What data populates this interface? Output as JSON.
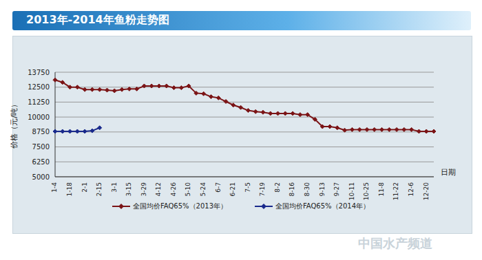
{
  "chart_data": {
    "type": "line",
    "title": "2013年-2014年鱼粉走势图",
    "y_label": "价格（元/吨）",
    "x_label": "日期",
    "source": "中国水产频道",
    "categories": [
      "1-4",
      null,
      "1-18",
      null,
      "2-1",
      null,
      "2-15",
      null,
      "3-1",
      null,
      "3-15",
      null,
      "3-29",
      null,
      "4-12",
      null,
      "4-26",
      null,
      "5-10",
      null,
      "5-24",
      null,
      "6-7",
      null,
      "6-21",
      null,
      "7-5",
      null,
      "7-19",
      null,
      "8-2",
      null,
      "8-16",
      null,
      "8-30",
      null,
      "9-13",
      null,
      "9-27",
      null,
      "10-11",
      null,
      "10-25",
      null,
      "11-8",
      null,
      "11-22",
      null,
      "12-6",
      null,
      "12-20",
      null
    ],
    "series": [
      {
        "name": "全国均价FAQ65%（2013年）",
        "color": "#7b1416",
        "marker": "diamond",
        "values": [
          13100,
          12900,
          12500,
          12500,
          12300,
          12300,
          12300,
          12250,
          12200,
          12300,
          12350,
          12350,
          12600,
          12600,
          12600,
          12600,
          12450,
          12450,
          12600,
          12000,
          11950,
          11700,
          11600,
          11300,
          11000,
          10800,
          10550,
          10450,
          10400,
          10300,
          10300,
          10300,
          10300,
          10200,
          10200,
          9800,
          9200,
          9200,
          9100,
          8900,
          8950,
          8950,
          8950,
          8950,
          8950,
          8950,
          8950,
          8950,
          8950,
          8800,
          8800,
          8800
        ]
      },
      {
        "name": "全国均价FAQ65%（2014年）",
        "color": "#1a2a8c",
        "marker": "diamond",
        "values": [
          8800,
          8800,
          8800,
          8800,
          8800,
          8850,
          9100,
          null,
          null,
          null,
          null,
          null,
          null,
          null,
          null,
          null,
          null,
          null,
          null,
          null,
          null,
          null,
          null,
          null,
          null,
          null,
          null,
          null,
          null,
          null,
          null,
          null,
          null,
          null,
          null,
          null,
          null,
          null,
          null,
          null,
          null,
          null,
          null,
          null,
          null,
          null,
          null,
          null,
          null,
          null,
          null,
          null
        ]
      }
    ],
    "ylim": [
      5000,
      13750
    ],
    "yticks": [
      5000,
      6250,
      7500,
      8750,
      10000,
      11250,
      12500,
      13750
    ],
    "grid": true,
    "legend": "bottom"
  }
}
